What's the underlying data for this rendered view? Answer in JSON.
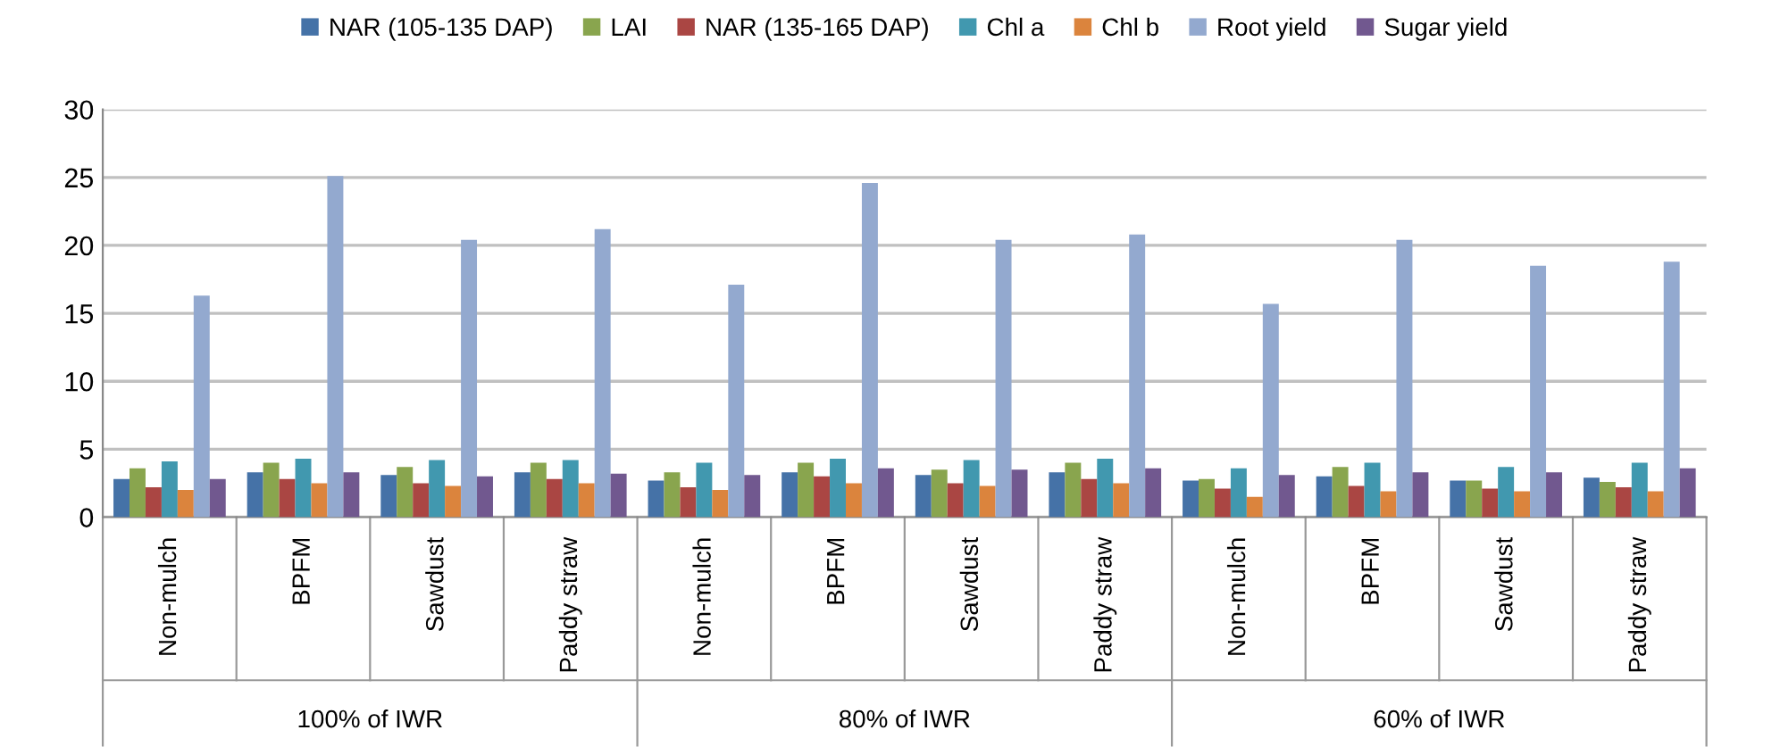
{
  "chart_data": {
    "type": "bar",
    "categories": [
      "Non-mulch",
      "BPFM",
      "Sawdust",
      "Paddy straw",
      "Non-mulch",
      "BPFM",
      "Sawdust",
      "Paddy straw",
      "Non-mulch",
      "BPFM",
      "Sawdust",
      "Paddy straw"
    ],
    "annotations": [
      "100% of IWR",
      "80% of IWR",
      "60% of IWR"
    ],
    "series": [
      {
        "name": "NAR (105-135 DAP)",
        "color": "#4572a7",
        "values": [
          2.8,
          3.3,
          3.1,
          3.3,
          2.7,
          3.3,
          3.1,
          3.3,
          2.7,
          3.0,
          2.7,
          2.9
        ]
      },
      {
        "name": "LAI",
        "color": "#89a54e",
        "values": [
          3.6,
          4.0,
          3.7,
          4.0,
          3.3,
          4.0,
          3.5,
          4.0,
          2.8,
          3.7,
          2.7,
          2.6
        ]
      },
      {
        "name": "NAR (135-165 DAP)",
        "color": "#aa4643",
        "values": [
          2.2,
          2.8,
          2.5,
          2.8,
          2.2,
          3.0,
          2.5,
          2.8,
          2.1,
          2.3,
          2.1,
          2.2
        ]
      },
      {
        "name": "Chl a",
        "color": "#4198af",
        "values": [
          4.1,
          4.3,
          4.2,
          4.2,
          4.0,
          4.3,
          4.2,
          4.3,
          3.6,
          4.0,
          3.7,
          4.0
        ]
      },
      {
        "name": "Chl b",
        "color": "#db843d",
        "values": [
          2.0,
          2.5,
          2.3,
          2.5,
          2.0,
          2.5,
          2.3,
          2.5,
          1.5,
          1.9,
          1.9,
          1.9
        ]
      },
      {
        "name": "Root yield",
        "color": "#93a9cf",
        "values": [
          16.3,
          25.1,
          20.4,
          21.2,
          17.1,
          24.6,
          20.4,
          20.8,
          15.7,
          20.4,
          18.5,
          18.8
        ]
      },
      {
        "name": "Sugar yield",
        "color": "#71588f",
        "values": [
          2.8,
          3.3,
          3.0,
          3.2,
          3.1,
          3.6,
          3.5,
          3.6,
          3.1,
          3.3,
          3.3,
          3.6
        ]
      }
    ],
    "ylim": [
      0,
      30
    ],
    "yticks": [
      0,
      5,
      10,
      15,
      20,
      25,
      30
    ],
    "grid": "y",
    "legend": "top"
  }
}
